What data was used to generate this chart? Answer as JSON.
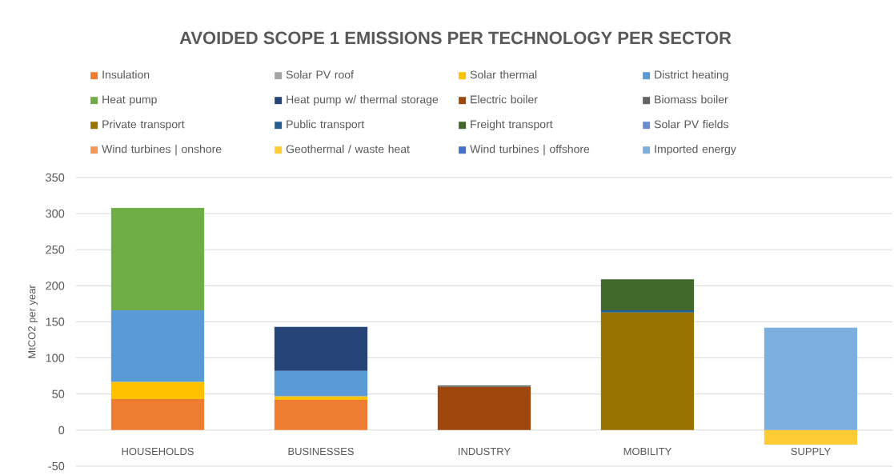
{
  "chart_data": {
    "type": "bar",
    "title": "AVOIDED SCOPE 1 EMISSIONS PER TECHNOLOGY PER SECTOR",
    "ylabel": "MtCO2 per year",
    "categories": [
      "HOUSEHOLDS",
      "BUSINESSES",
      "INDUSTRY",
      "MOBILITY",
      "SUPPLY"
    ],
    "stacked": true,
    "legend": "top",
    "grid": "y",
    "ylim": [
      -50,
      350
    ],
    "yticks": [
      -50,
      0,
      50,
      100,
      150,
      200,
      250,
      300,
      350
    ],
    "series": [
      {
        "name": "Insulation",
        "color": "#ED7D31",
        "values": [
          43,
          42,
          null,
          null,
          null
        ]
      },
      {
        "name": "Solar PV roof",
        "color": "#A5A5A5",
        "values": [
          null,
          null,
          null,
          null,
          null
        ]
      },
      {
        "name": "Solar thermal",
        "color": "#FFC000",
        "values": [
          24,
          5,
          null,
          null,
          null
        ]
      },
      {
        "name": "District heating",
        "color": "#5B9BD5",
        "values": [
          99,
          35,
          null,
          null,
          null
        ]
      },
      {
        "name": "Heat pump",
        "color": "#70AD47",
        "values": [
          142,
          null,
          null,
          null,
          null
        ]
      },
      {
        "name": "Heat pump w/ thermal storage",
        "color": "#264478",
        "values": [
          null,
          61,
          null,
          null,
          null
        ]
      },
      {
        "name": "Electric boiler",
        "color": "#9E480E",
        "values": [
          null,
          null,
          60,
          null,
          null
        ]
      },
      {
        "name": "Biomass boiler",
        "color": "#636363",
        "values": [
          null,
          null,
          2,
          null,
          null
        ]
      },
      {
        "name": "Private transport",
        "color": "#997300",
        "values": [
          null,
          null,
          null,
          163,
          null
        ]
      },
      {
        "name": "Public transport",
        "color": "#255E91",
        "values": [
          null,
          null,
          null,
          3,
          null
        ]
      },
      {
        "name": "Freight transport",
        "color": "#43682B",
        "values": [
          null,
          null,
          null,
          43,
          null
        ]
      },
      {
        "name": "Solar PV fields",
        "color": "#698ED0",
        "values": [
          null,
          null,
          null,
          null,
          null
        ]
      },
      {
        "name": "Wind turbines | onshore",
        "color": "#F1975A",
        "values": [
          null,
          null,
          null,
          null,
          null
        ]
      },
      {
        "name": "Geothermal / waste heat",
        "color": "#FFCD33",
        "values": [
          null,
          null,
          null,
          null,
          -20
        ]
      },
      {
        "name": "Wind turbines | offshore",
        "color": "#4472C4",
        "values": [
          null,
          null,
          null,
          null,
          null
        ]
      },
      {
        "name": "Imported energy",
        "color": "#7CAFDD",
        "values": [
          null,
          null,
          null,
          null,
          142
        ]
      }
    ]
  }
}
